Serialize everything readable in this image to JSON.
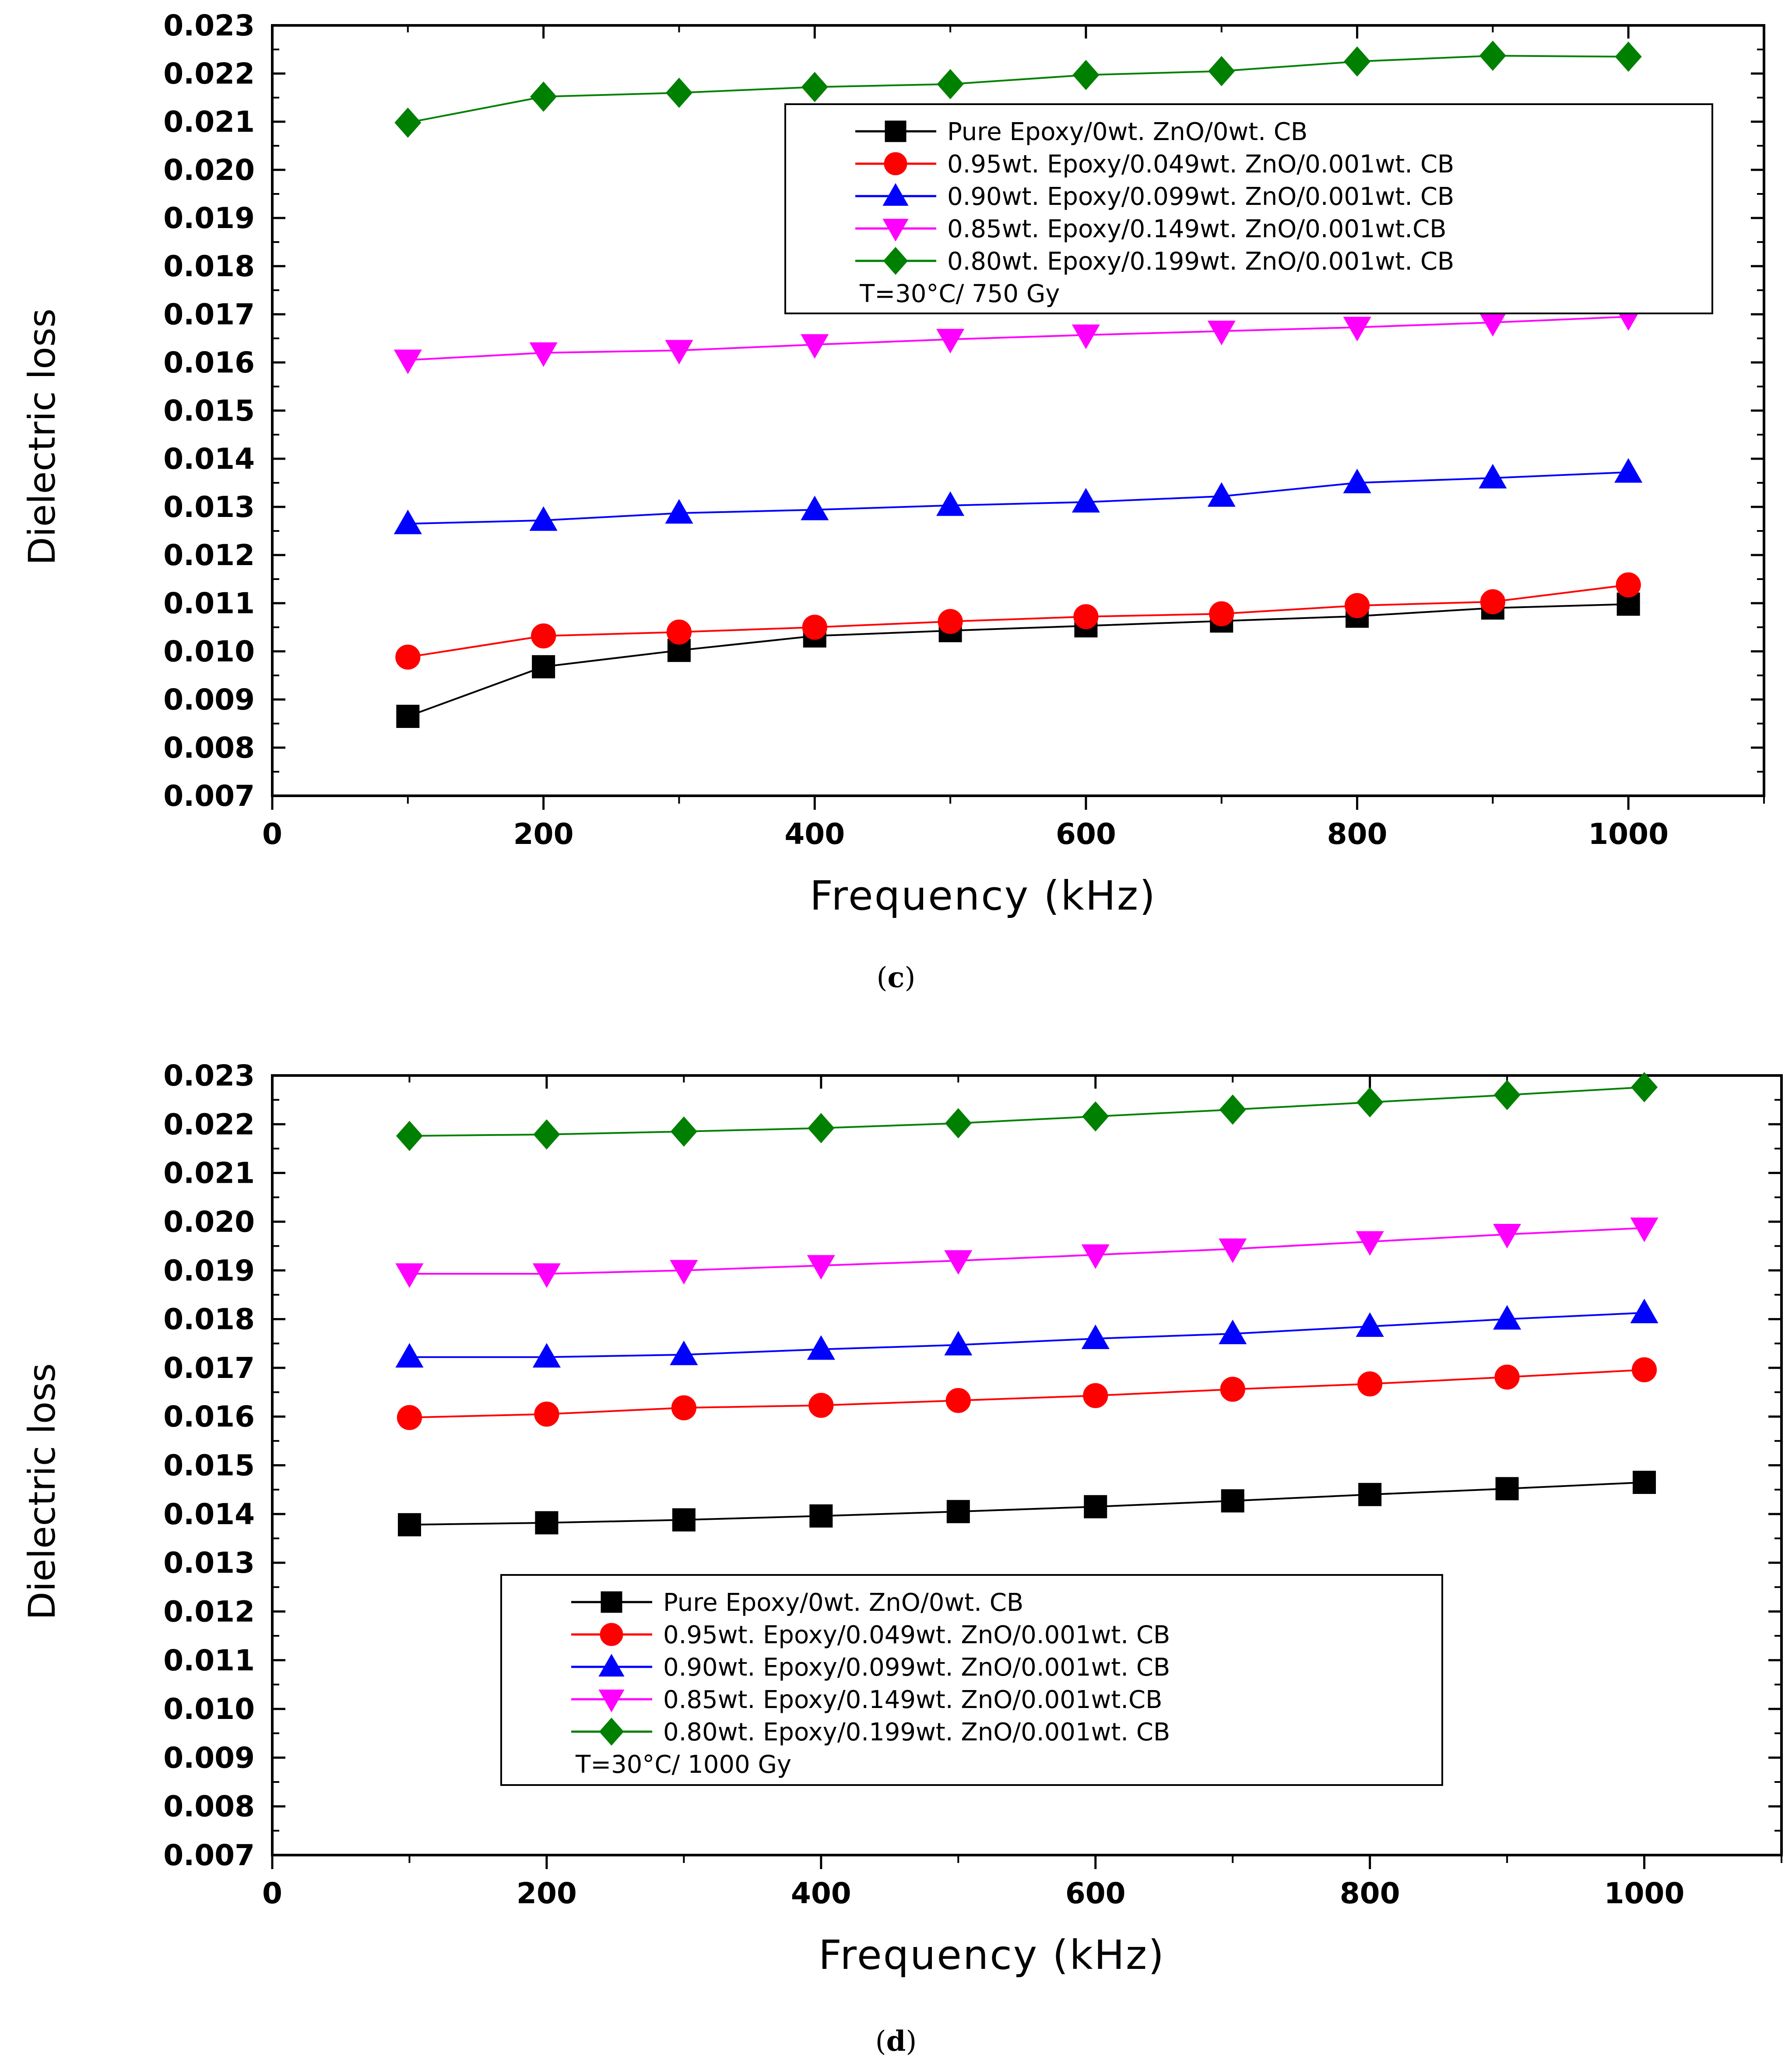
{
  "chart_data": [
    {
      "type": "line",
      "panel": "c",
      "caption_open": "(",
      "caption_letter": "c",
      "caption_close": ")",
      "title": "",
      "xlabel": "Frequency  (kHz)",
      "ylabel": "Dielectric loss",
      "xlim": [
        0,
        1100
      ],
      "ylim": [
        0.007,
        0.023
      ],
      "xticks": [
        0,
        200,
        400,
        600,
        800,
        1000
      ],
      "xtick_labels": [
        "0",
        "200",
        "400",
        "600",
        "800",
        "1000"
      ],
      "yticks": [
        0.007,
        0.008,
        0.009,
        0.01,
        0.011,
        0.012,
        0.013,
        0.014,
        0.015,
        0.016,
        0.017,
        0.018,
        0.019,
        0.02,
        0.021,
        0.022,
        0.023
      ],
      "ytick_labels": [
        "0.007",
        "0.008",
        "0.009",
        "0.010",
        "0.011",
        "0.012",
        "0.013",
        "0.014",
        "0.015",
        "0.016",
        "0.017",
        "0.018",
        "0.019",
        "0.020",
        "0.021",
        "0.022",
        "0.023"
      ],
      "legend_position": "top-right",
      "legend_note": "T=30°C/ 750 Gy",
      "x": [
        100,
        200,
        300,
        400,
        500,
        600,
        700,
        800,
        900,
        1000
      ],
      "series": [
        {
          "name": "Pure Epoxy/0wt. ZnO/0wt. CB",
          "color": "#000000",
          "marker": "square",
          "values": [
            0.00865,
            0.00968,
            0.01002,
            0.01032,
            0.01043,
            0.01053,
            0.01063,
            0.01073,
            0.0109,
            0.01098
          ]
        },
        {
          "name": "0.95wt. Epoxy/0.049wt. ZnO/0.001wt. CB",
          "color": "#ff0000",
          "marker": "circle",
          "values": [
            0.00988,
            0.01032,
            0.0104,
            0.0105,
            0.01062,
            0.01072,
            0.01078,
            0.01095,
            0.01103,
            0.01138
          ]
        },
        {
          "name": "0.90wt. Epoxy/0.099wt. ZnO/0.001wt. CB",
          "color": "#0000ff",
          "marker": "triangle-up",
          "values": [
            0.01265,
            0.01272,
            0.01287,
            0.01294,
            0.01303,
            0.0131,
            0.01322,
            0.0135,
            0.0136,
            0.01372
          ]
        },
        {
          "name": "0.85wt. Epoxy/0.149wt. ZnO/0.001wt.CB",
          "color": "#ff00ff",
          "marker": "triangle-down",
          "values": [
            0.01605,
            0.0162,
            0.01625,
            0.01637,
            0.01648,
            0.01657,
            0.01665,
            0.01673,
            0.01683,
            0.01695
          ]
        },
        {
          "name": "0.80wt. Epoxy/0.199wt. ZnO/0.001wt. CB",
          "color": "#008000",
          "marker": "diamond",
          "values": [
            0.02098,
            0.02152,
            0.0216,
            0.02172,
            0.02178,
            0.02197,
            0.02205,
            0.02225,
            0.02237,
            0.02235
          ]
        }
      ]
    },
    {
      "type": "line",
      "panel": "d",
      "caption_open": "(",
      "caption_letter": "d",
      "caption_close": ")",
      "title": "",
      "xlabel": "Frequency  (kHz)",
      "ylabel": "Dielectric loss",
      "xlim": [
        0,
        1100
      ],
      "ylim": [
        0.007,
        0.023
      ],
      "xticks": [
        0,
        200,
        400,
        600,
        800,
        1000
      ],
      "xtick_labels": [
        "0",
        "200",
        "400",
        "600",
        "800",
        "1000"
      ],
      "yticks": [
        0.007,
        0.008,
        0.009,
        0.01,
        0.011,
        0.012,
        0.013,
        0.014,
        0.015,
        0.016,
        0.017,
        0.018,
        0.019,
        0.02,
        0.021,
        0.022,
        0.023
      ],
      "ytick_labels": [
        "0.007",
        "0.008",
        "0.009",
        "0.010",
        "0.011",
        "0.012",
        "0.013",
        "0.014",
        "0.015",
        "0.016",
        "0.017",
        "0.018",
        "0.019",
        "0.020",
        "0.021",
        "0.022",
        "0.023"
      ],
      "legend_position": "bottom-center",
      "legend_note": "T=30°C/ 1000 Gy",
      "x": [
        100,
        200,
        300,
        400,
        500,
        600,
        700,
        800,
        900,
        1000
      ],
      "series": [
        {
          "name": "Pure Epoxy/0wt. ZnO/0wt. CB",
          "color": "#000000",
          "marker": "square",
          "values": [
            0.01378,
            0.01382,
            0.01388,
            0.01396,
            0.01405,
            0.01415,
            0.01427,
            0.0144,
            0.01452,
            0.01465
          ]
        },
        {
          "name": "0.95wt. Epoxy/0.049wt. ZnO/0.001wt. CB",
          "color": "#ff0000",
          "marker": "circle",
          "values": [
            0.01598,
            0.01605,
            0.01618,
            0.01623,
            0.01633,
            0.01643,
            0.01656,
            0.01667,
            0.01681,
            0.01696
          ]
        },
        {
          "name": "0.90wt. Epoxy/0.099wt. ZnO/0.001wt. CB",
          "color": "#0000ff",
          "marker": "triangle-up",
          "values": [
            0.01722,
            0.01722,
            0.01727,
            0.01738,
            0.01747,
            0.0176,
            0.0177,
            0.01785,
            0.018,
            0.01813
          ]
        },
        {
          "name": "0.85wt. Epoxy/0.149wt. ZnO/0.001wt.CB",
          "color": "#ff00ff",
          "marker": "triangle-down",
          "values": [
            0.01893,
            0.01893,
            0.019,
            0.0191,
            0.0192,
            0.01932,
            0.01944,
            0.01959,
            0.01974,
            0.01987
          ]
        },
        {
          "name": "0.80wt. Epoxy/0.199wt. ZnO/0.001wt. CB",
          "color": "#008000",
          "marker": "diamond",
          "values": [
            0.02176,
            0.02179,
            0.02185,
            0.02192,
            0.02202,
            0.02216,
            0.0223,
            0.02245,
            0.0226,
            0.02276
          ]
        }
      ]
    }
  ]
}
